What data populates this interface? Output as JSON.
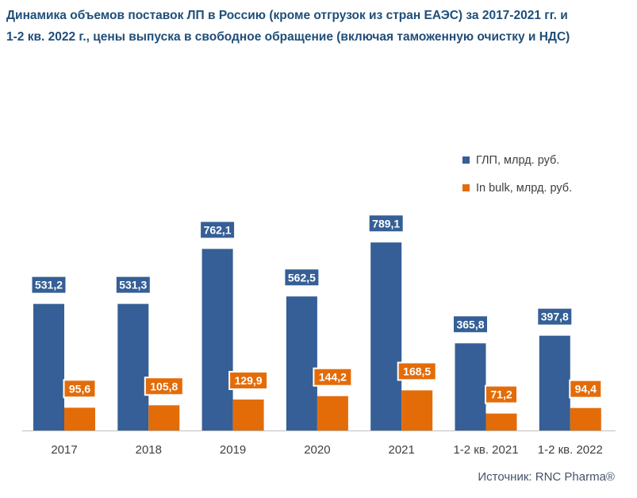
{
  "title": {
    "line1": "Динамика объемов поставок ЛП в Россию (кроме отгрузок из стран ЕАЭС) за 2017-2021 гг. и",
    "line2": "1-2 кв. 2022 г., цены выпуска в свободное обращение (включая таможенную очистку и НДС)"
  },
  "source": "Источник: RNC Pharma®",
  "chart_data": {
    "type": "bar",
    "title": "Динамика объемов поставок ЛП в Россию (кроме отгрузок из стран ЕАЭС) за 2017-2021 гг. и 1-2 кв. 2022 г., цены выпуска в свободное обращение (включая таможенную очистку и НДС)",
    "xlabel": "",
    "ylabel": "",
    "grid": false,
    "legend_position": "top-right",
    "categories": [
      "2017",
      "2018",
      "2019",
      "2020",
      "2021",
      "1-2 кв. 2021",
      "1-2 кв. 2022"
    ],
    "series": [
      {
        "name": "ГЛП, млрд. руб.",
        "color": "#355f96",
        "values": [
          531.2,
          531.3,
          762.1,
          562.5,
          789.1,
          365.8,
          397.8
        ],
        "labels": [
          "531,2",
          "531,3",
          "762,1",
          "562,5",
          "789,1",
          "365,8",
          "397,8"
        ]
      },
      {
        "name": "In bulk, млрд. руб.",
        "color": "#e36c09",
        "values": [
          95.6,
          105.8,
          129.9,
          144.2,
          168.5,
          71.2,
          94.4
        ],
        "labels": [
          "95,6",
          "105,8",
          "129,9",
          "144,2",
          "168,5",
          "71,2",
          "94,4"
        ]
      }
    ],
    "ylim": [
      0,
      800
    ]
  }
}
